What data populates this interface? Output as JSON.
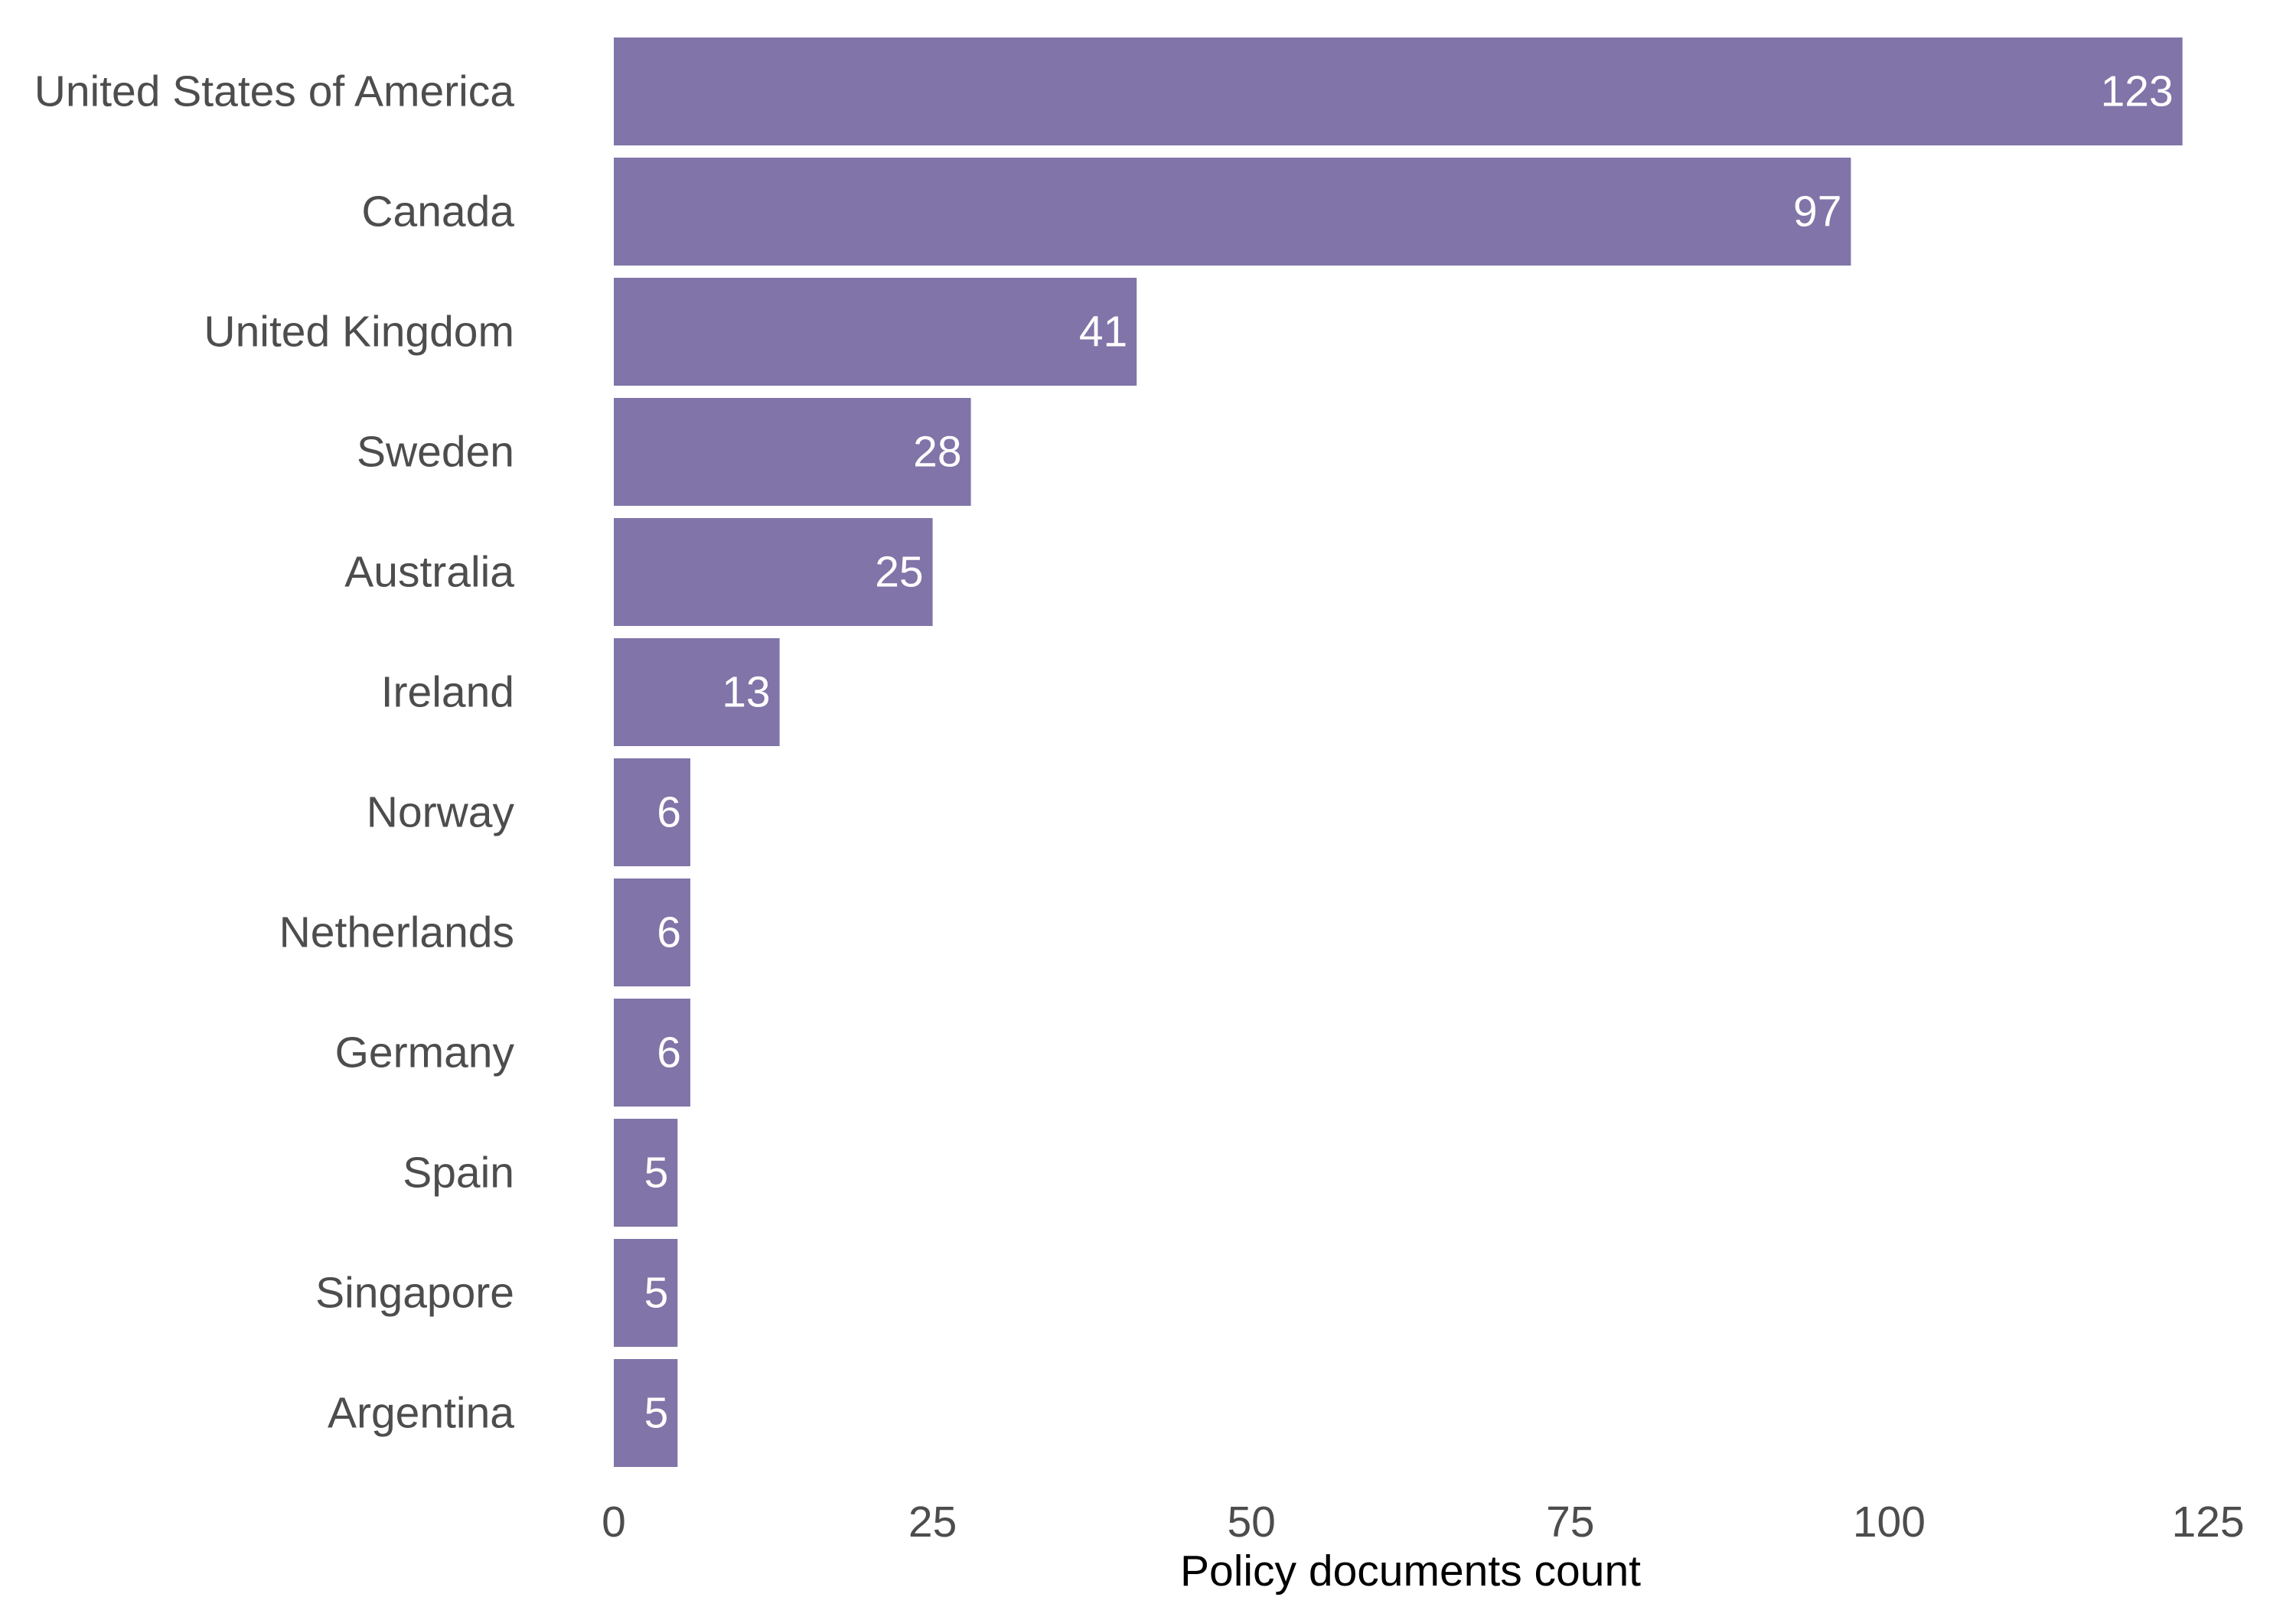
{
  "chart_data": {
    "type": "bar",
    "orientation": "horizontal",
    "title": "",
    "xlabel": "Policy documents count",
    "ylabel": "",
    "xlim": [
      0,
      125
    ],
    "xticks": [
      0,
      25,
      50,
      75,
      100,
      125
    ],
    "grid": false,
    "bar_color": "#8074a8",
    "value_label_color": "#ffffff",
    "categories": [
      "United States of America",
      "Canada",
      "United Kingdom",
      "Sweden",
      "Australia",
      "Ireland",
      "Norway",
      "Netherlands",
      "Germany",
      "Spain",
      "Singapore",
      "Argentina"
    ],
    "values": [
      123,
      97,
      41,
      28,
      25,
      13,
      6,
      6,
      6,
      5,
      5,
      5
    ]
  }
}
